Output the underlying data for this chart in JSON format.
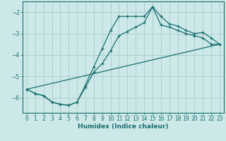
{
  "title": "",
  "xlabel": "Humidex (Indice chaleur)",
  "bg_color": "#cce8e8",
  "grid_color": "#aacccc",
  "line_color": "#1a7070",
  "xlim": [
    -0.5,
    23.5
  ],
  "ylim": [
    -6.7,
    -1.5
  ],
  "yticks": [
    -2,
    -3,
    -4,
    -5,
    -6
  ],
  "xticks": [
    0,
    1,
    2,
    3,
    4,
    5,
    6,
    7,
    8,
    9,
    10,
    11,
    12,
    13,
    14,
    15,
    16,
    17,
    18,
    19,
    20,
    21,
    22,
    23
  ],
  "series1_x": [
    0,
    1,
    2,
    3,
    4,
    5,
    6,
    7,
    8,
    9,
    10,
    11,
    12,
    13,
    14,
    15,
    16,
    17,
    18,
    19,
    20,
    21,
    22,
    23
  ],
  "series1_y": [
    -5.6,
    -5.8,
    -5.9,
    -6.2,
    -6.3,
    -6.35,
    -6.2,
    -5.4,
    -4.55,
    -3.7,
    -2.85,
    -2.2,
    -2.2,
    -2.2,
    -2.2,
    -1.75,
    -2.2,
    -2.55,
    -2.65,
    -2.85,
    -3.0,
    -2.95,
    -3.2,
    -3.5
  ],
  "series2_x": [
    0,
    1,
    2,
    3,
    4,
    5,
    6,
    7,
    8,
    9,
    10,
    11,
    12,
    13,
    14,
    15,
    16,
    17,
    18,
    19,
    20,
    21,
    22,
    23
  ],
  "series2_y": [
    -5.6,
    -5.8,
    -5.9,
    -6.2,
    -6.3,
    -6.35,
    -6.2,
    -5.5,
    -4.8,
    -4.4,
    -3.8,
    -3.1,
    -2.9,
    -2.7,
    -2.5,
    -1.75,
    -2.6,
    -2.7,
    -2.85,
    -3.0,
    -3.1,
    -3.2,
    -3.5,
    -3.5
  ],
  "series3_x": [
    0,
    23
  ],
  "series3_y": [
    -5.6,
    -3.5
  ]
}
